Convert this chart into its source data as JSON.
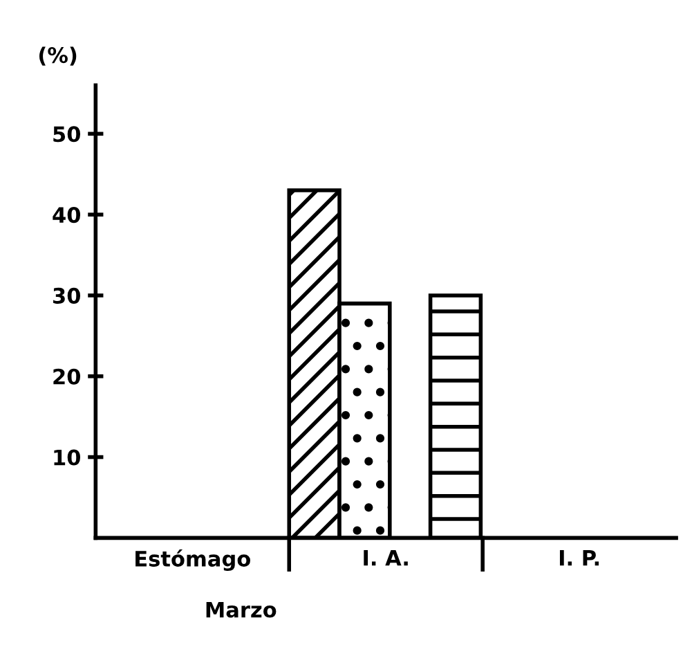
{
  "chart_data": {
    "type": "bar",
    "ylabel": "(%)",
    "xlabel": "Marzo",
    "categories": [
      "Estómago",
      "I. A.",
      "I. P."
    ],
    "series": [
      {
        "color": "#000000",
        "values": [
          null,
          43,
          null
        ]
      },
      {
        "color": "#000000",
        "values": [
          null,
          29,
          null
        ]
      },
      {
        "color": "#000000",
        "values": [
          null,
          30,
          null
        ]
      }
    ],
    "ylim": [
      0,
      56
    ],
    "yticks": [
      10,
      20,
      30,
      40,
      50
    ],
    "grid": false,
    "legend": false
  }
}
